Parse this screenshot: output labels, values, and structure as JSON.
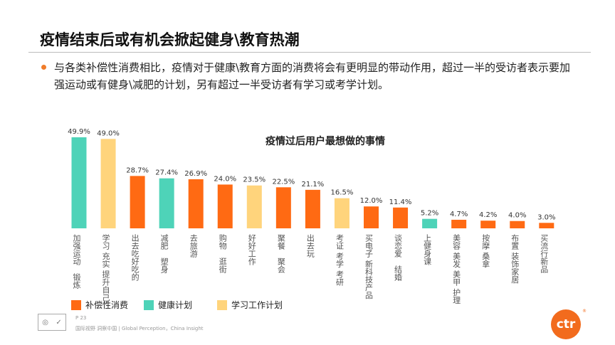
{
  "header": {
    "title": "疫情结束后或有机会掀起健身\\教育热潮",
    "description": "与各类补偿性消费相比，疫情对于健康\\教育方面的消费将会有更明显的带动作用，超过一半的受访者表示要加强运动或有健身\\减肥的计划，另有超过一半受访者有学习或考学计划。"
  },
  "chart_data": {
    "type": "bar",
    "title": "疫情过后用户最想做的事情",
    "categories": [
      "加强运动　锻炼",
      "学习 充实 提升自己",
      "出去吃好吃的",
      "减肥　塑身",
      "去旅游",
      "购物　逛街",
      "好好工作",
      "聚餐　聚会",
      "出去玩",
      "考证 考学 考研",
      "买电子 新科技产品",
      "谈恋爱　结婚",
      "上健身课",
      "美容 美发 美甲 护理",
      "按摩 桑拿",
      "布置 装饰家居",
      "买流行新品"
    ],
    "values": [
      49.9,
      49.0,
      28.7,
      27.4,
      26.9,
      24.0,
      23.5,
      22.5,
      21.1,
      16.5,
      12.0,
      11.4,
      5.2,
      4.7,
      4.2,
      4.0,
      3.0
    ],
    "labels": [
      "49.9%",
      "49.0%",
      "28.7%",
      "27.4%",
      "26.9%",
      "24.0%",
      "23.5%",
      "22.5%",
      "21.1%",
      "16.5%",
      "12.0%",
      "11.4%",
      "5.2%",
      "4.7%",
      "4.2%",
      "4.0%",
      "3.0%"
    ],
    "groups": [
      "health",
      "study",
      "comp",
      "health",
      "comp",
      "comp",
      "study",
      "comp",
      "comp",
      "study",
      "comp",
      "comp",
      "health",
      "comp",
      "comp",
      "comp",
      "comp"
    ],
    "legend": [
      {
        "key": "comp",
        "name": "补偿性消费",
        "color": "#FF6A13"
      },
      {
        "key": "health",
        "name": "健康计划",
        "color": "#4ED3B8"
      },
      {
        "key": "study",
        "name": "学习工作计划",
        "color": "#FFD47C"
      }
    ],
    "ylim": [
      0,
      50
    ],
    "grid": false
  },
  "footer": {
    "page": "P 23",
    "tagline": "国际视野  洞察中国 |  Global Perception，China Insight",
    "brand": "ctr",
    "reg": "®"
  }
}
